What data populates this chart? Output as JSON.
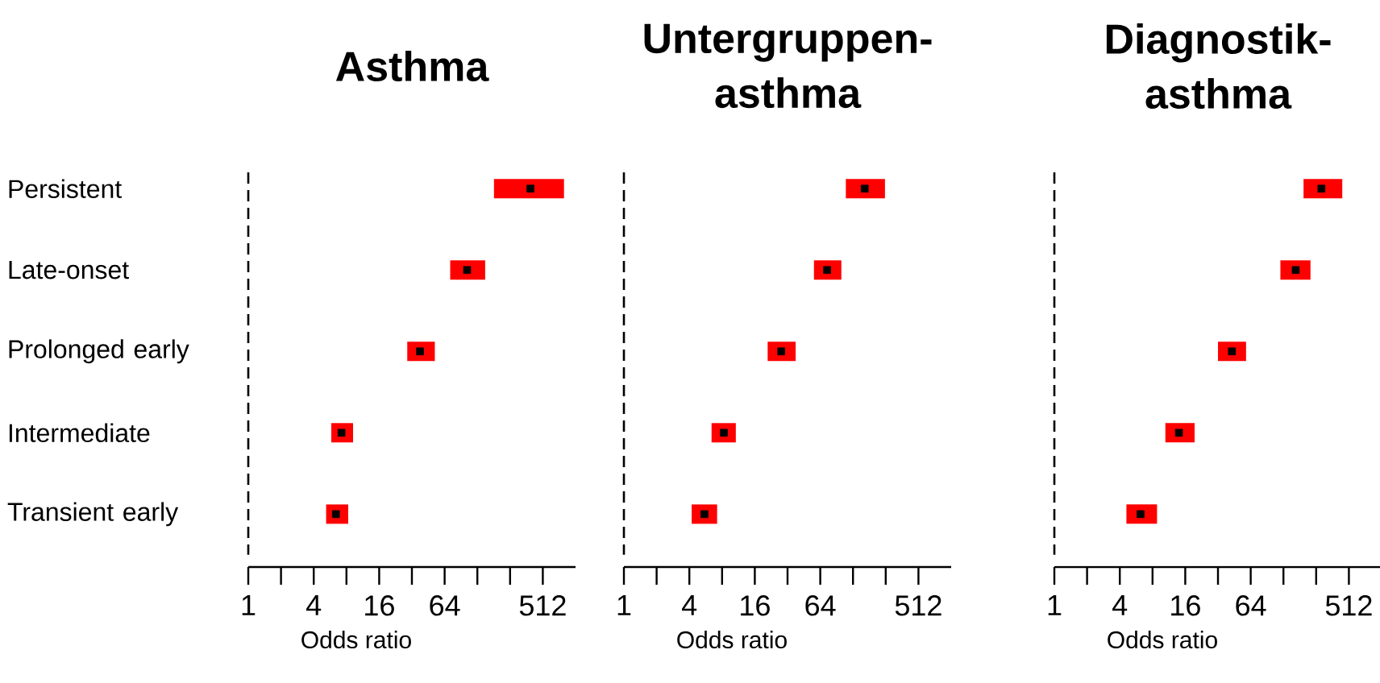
{
  "chart_data": [
    {
      "type": "scatter",
      "orientation": "horizontal",
      "title": "Asthma",
      "xlabel": "Odds ratio",
      "categories": [
        "Persistent",
        "Late-onset",
        "Prolonged early",
        "Intermediate",
        "Transient early"
      ],
      "log": "x",
      "xlim": [
        1,
        1024
      ],
      "xticks": [
        1,
        {
          "value": 2,
          "label": null
        },
        4,
        {
          "value": 8,
          "label": null
        },
        16,
        {
          "value": 32,
          "label": null
        },
        64,
        {
          "value": 128,
          "label": null
        },
        {
          "value": 256,
          "label": null
        },
        512
      ],
      "marker": "square",
      "ref_lines": [
        {
          "axis": "x",
          "value": 1,
          "line_style": "dashed",
          "color": "#000000"
        }
      ],
      "series": [
        {
          "color": "#000000",
          "values": [
            394,
            103,
            38,
            7.2,
            6.4
          ],
          "errors": [
            [
              182,
              802
            ],
            [
              72,
              151
            ],
            [
              29,
              52
            ],
            [
              5.8,
              9.2
            ],
            [
              5.2,
              8.3
            ]
          ]
        }
      ]
    },
    {
      "type": "scatter",
      "orientation": "horizontal",
      "title": "Untergruppen-asthma",
      "xlabel": "Odds ratio",
      "categories": [
        null,
        null,
        null,
        null,
        null
      ],
      "log": "x",
      "xlim": [
        1,
        1024
      ],
      "xticks": [
        1,
        {
          "value": 2,
          "label": null
        },
        4,
        {
          "value": 8,
          "label": null
        },
        16,
        {
          "value": 32,
          "label": null
        },
        64,
        {
          "value": 128,
          "label": null
        },
        {
          "value": 256,
          "label": null
        },
        512
      ],
      "marker": "square",
      "ref_lines": [
        {
          "axis": "x",
          "value": 1,
          "line_style": "dashed",
          "color": "#000000"
        }
      ],
      "series": [
        {
          "color": "#000000",
          "values": [
            164,
            74,
            28,
            8.3,
            5.5
          ],
          "errors": [
            [
              110,
              252
            ],
            [
              56,
              100
            ],
            [
              21,
              38
            ],
            [
              6.4,
              10.7
            ],
            [
              4.2,
              7.2
            ]
          ]
        }
      ]
    },
    {
      "type": "scatter",
      "orientation": "horizontal",
      "title": "Diagnostik-asthma",
      "xlabel": "Odds ratio",
      "categories": [
        null,
        null,
        null,
        null,
        null
      ],
      "log": "x",
      "xlim": [
        1,
        1024
      ],
      "xticks": [
        1,
        {
          "value": 2,
          "label": null
        },
        4,
        {
          "value": 8,
          "label": null
        },
        16,
        {
          "value": 32,
          "label": null
        },
        64,
        {
          "value": 128,
          "label": null
        },
        {
          "value": 256,
          "label": null
        },
        512
      ],
      "marker": "square",
      "ref_lines": [
        {
          "axis": "x",
          "value": 1,
          "line_style": "dashed",
          "color": "#000000"
        }
      ],
      "series": [
        {
          "color": "#000000",
          "values": [
            286,
            166,
            43,
            14,
            6.2
          ],
          "errors": [
            [
              196,
              445
            ],
            [
              120,
              227
            ],
            [
              32,
              58
            ],
            [
              10.5,
              19.5
            ],
            [
              4.6,
              8.8
            ]
          ]
        }
      ]
    }
  ]
}
